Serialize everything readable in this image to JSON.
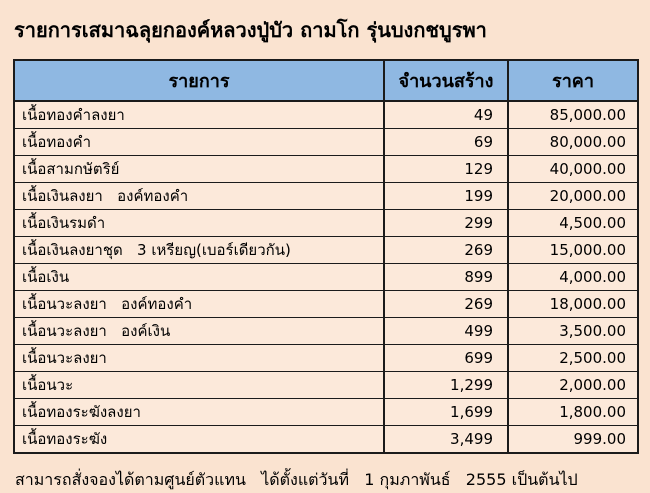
{
  "page": {
    "title": "รายการเสมาฉลุยกองค์หลวงปู่บัว ถามโก รุ่นบงกชบูรพา",
    "footer": "สามารถสั่งจองได้ตามศูนย์ตัวแทน   ได้ตั้งแต่วันที่   1 กุมภาพันธ์   2555 เป็นต้นไป"
  },
  "colors": {
    "page_background": "#fae3d0",
    "cell_background": "#fce9da",
    "header_background": "#8fb8e2",
    "border": "#1b1b1b",
    "text": "#000000"
  },
  "table": {
    "columns": [
      "รายการ",
      "จำนวนสร้าง",
      "ราคา"
    ],
    "rows": [
      {
        "item": "เนื้อทองคำลงยา",
        "quantity": "49",
        "price": "85,000.00"
      },
      {
        "item": "เนื้อทองคำ",
        "quantity": "69",
        "price": "80,000.00"
      },
      {
        "item": "เนื้อสามกษัตริย์",
        "quantity": "129",
        "price": "40,000.00"
      },
      {
        "item": "เนื้อเงินลงยา   องค์ทองคำ",
        "quantity": "199",
        "price": "20,000.00"
      },
      {
        "item": "เนื้อเงินรมดำ",
        "quantity": "299",
        "price": "4,500.00"
      },
      {
        "item": "เนื้อเงินลงยาชุด   3 เหรียญ(เบอร์เดียวกัน)",
        "quantity": "269",
        "price": "15,000.00"
      },
      {
        "item": "เนื้อเงิน",
        "quantity": "899",
        "price": "4,000.00"
      },
      {
        "item": "เนื้อนวะลงยา   องค์ทองคำ",
        "quantity": "269",
        "price": "18,000.00"
      },
      {
        "item": "เนื้อนวะลงยา   องค์เงิน",
        "quantity": "499",
        "price": "3,500.00"
      },
      {
        "item": "เนื้อนวะลงยา",
        "quantity": "699",
        "price": "2,500.00"
      },
      {
        "item": "เนื้อนวะ",
        "quantity": "1,299",
        "price": "2,000.00"
      },
      {
        "item": "เนื้อทองระฆังลงยา",
        "quantity": "1,699",
        "price": "1,800.00"
      },
      {
        "item": "เนื้อทองระฆัง",
        "quantity": "3,499",
        "price": "999.00"
      }
    ]
  }
}
